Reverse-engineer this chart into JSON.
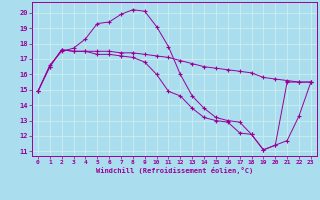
{
  "xlabel": "Windchill (Refroidissement éolien,°C)",
  "background_color": "#aaddee",
  "line_color": "#990099",
  "grid_color": "#cceeee",
  "xlim": [
    -0.5,
    23.5
  ],
  "ylim": [
    10.7,
    20.7
  ],
  "yticks": [
    11,
    12,
    13,
    14,
    15,
    16,
    17,
    18,
    19,
    20
  ],
  "xticks": [
    0,
    1,
    2,
    3,
    4,
    5,
    6,
    7,
    8,
    9,
    10,
    11,
    12,
    13,
    14,
    15,
    16,
    17,
    18,
    19,
    20,
    21,
    22,
    23
  ],
  "line1_x": [
    0,
    1,
    2,
    3,
    4,
    5,
    6,
    7,
    8,
    9,
    10,
    11,
    12,
    13,
    14,
    15,
    16,
    17,
    18,
    19,
    20,
    21,
    22,
    23
  ],
  "line1_y": [
    14.9,
    16.6,
    17.5,
    17.7,
    18.3,
    19.3,
    19.4,
    19.9,
    20.2,
    20.1,
    19.1,
    17.8,
    16.0,
    14.6,
    13.8,
    13.2,
    13.0,
    12.9,
    12.1,
    11.1,
    11.4,
    11.7,
    13.3,
    15.5
  ],
  "line2_x": [
    0,
    1,
    2,
    3,
    4,
    5,
    6,
    7,
    8,
    9,
    10,
    11,
    12,
    13,
    14,
    15,
    16,
    17,
    18,
    19,
    20,
    21,
    22,
    23
  ],
  "line2_y": [
    14.9,
    16.5,
    17.6,
    17.5,
    17.5,
    17.5,
    17.5,
    17.4,
    17.4,
    17.3,
    17.2,
    17.1,
    16.9,
    16.7,
    16.5,
    16.4,
    16.3,
    16.2,
    16.1,
    15.8,
    15.7,
    15.6,
    15.5,
    15.5
  ],
  "line3_x": [
    0,
    1,
    2,
    3,
    4,
    5,
    6,
    7,
    8,
    9,
    10,
    11,
    12,
    13,
    14,
    15,
    16,
    17,
    18,
    19,
    20,
    21,
    22,
    23
  ],
  "line3_y": [
    14.9,
    16.5,
    17.6,
    17.5,
    17.5,
    17.3,
    17.3,
    17.2,
    17.1,
    16.8,
    16.0,
    14.9,
    14.6,
    13.8,
    13.2,
    13.0,
    12.9,
    12.2,
    12.1,
    11.1,
    11.4,
    15.5,
    15.5,
    15.5
  ]
}
